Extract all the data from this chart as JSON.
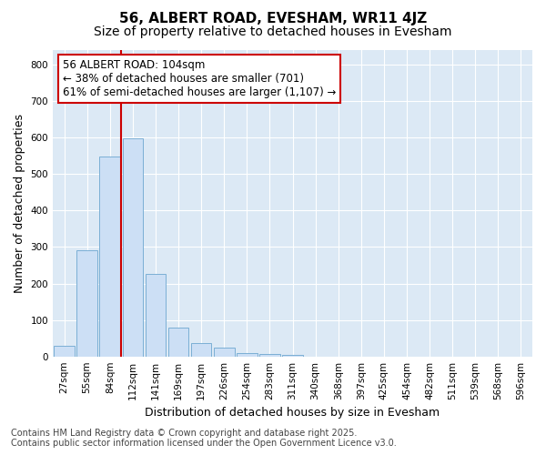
{
  "title": "56, ALBERT ROAD, EVESHAM, WR11 4JZ",
  "subtitle": "Size of property relative to detached houses in Evesham",
  "xlabel": "Distribution of detached houses by size in Evesham",
  "ylabel": "Number of detached properties",
  "bar_color": "#ccdff5",
  "bar_edge_color": "#7bafd4",
  "plot_bg_color": "#dce9f5",
  "fig_bg_color": "#ffffff",
  "grid_color": "#ffffff",
  "categories": [
    "27sqm",
    "55sqm",
    "84sqm",
    "112sqm",
    "141sqm",
    "169sqm",
    "197sqm",
    "226sqm",
    "254sqm",
    "283sqm",
    "311sqm",
    "340sqm",
    "368sqm",
    "397sqm",
    "425sqm",
    "454sqm",
    "482sqm",
    "511sqm",
    "539sqm",
    "568sqm",
    "596sqm"
  ],
  "values": [
    28,
    292,
    548,
    598,
    226,
    80,
    37,
    25,
    10,
    7,
    5,
    0,
    0,
    0,
    0,
    0,
    0,
    0,
    0,
    0,
    0
  ],
  "ylim": [
    0,
    840
  ],
  "yticks": [
    0,
    100,
    200,
    300,
    400,
    500,
    600,
    700,
    800
  ],
  "vline_position": 2.5,
  "vline_color": "#cc0000",
  "annotation_text": "56 ALBERT ROAD: 104sqm\n← 38% of detached houses are smaller (701)\n61% of semi-detached houses are larger (1,107) →",
  "annotation_box_color": "#ffffff",
  "annotation_box_edgecolor": "#cc0000",
  "footer_line1": "Contains HM Land Registry data © Crown copyright and database right 2025.",
  "footer_line2": "Contains public sector information licensed under the Open Government Licence v3.0.",
  "title_fontsize": 11,
  "subtitle_fontsize": 10,
  "tick_fontsize": 7.5,
  "label_fontsize": 9,
  "footer_fontsize": 7,
  "annotation_fontsize": 8.5
}
